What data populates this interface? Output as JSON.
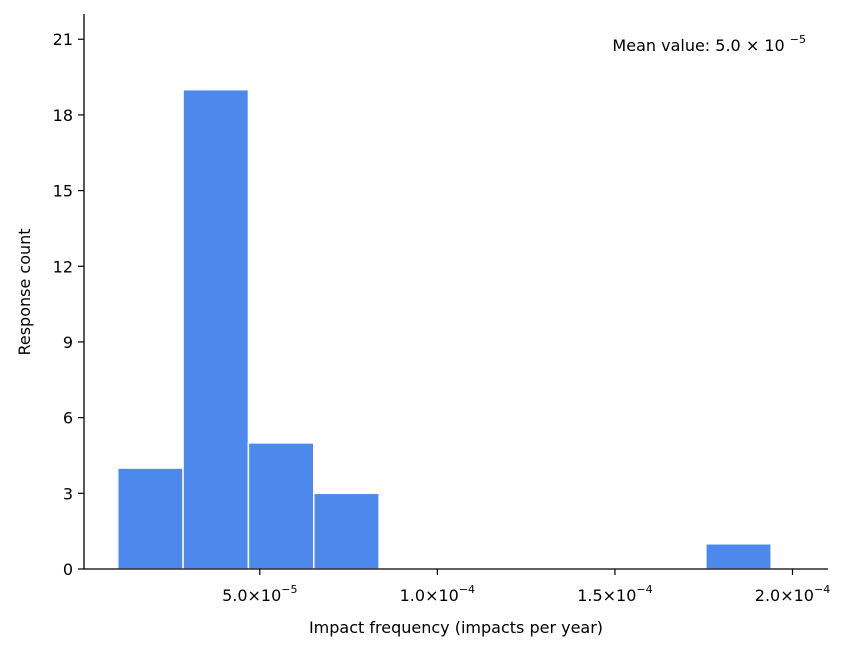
{
  "chart_data": {
    "type": "bar",
    "subtype": "histogram",
    "xlabel": "Impact frequency (impacts per year)",
    "ylabel": "Response count",
    "annotation": {
      "text_prefix": "Mean value: 5.0",
      "times": "×",
      "base": "10",
      "exponent": "−5",
      "placement": "top-right"
    },
    "bar_color": "#4d88ec",
    "xlim": [
      5e-07,
      0.00021
    ],
    "ylim": [
      0,
      22
    ],
    "x_ticks": [
      {
        "value": 5e-05,
        "mantissa": "5.0",
        "times": "×",
        "base": "10",
        "exponent": "−5"
      },
      {
        "value": 0.0001,
        "mantissa": "1.0",
        "times": "×",
        "base": "10",
        "exponent": "−4"
      },
      {
        "value": 0.00015,
        "mantissa": "1.5",
        "times": "×",
        "base": "10",
        "exponent": "−4"
      },
      {
        "value": 0.0002,
        "mantissa": "2.0",
        "times": "×",
        "base": "10",
        "exponent": "−4"
      }
    ],
    "y_ticks": [
      "0",
      "3",
      "6",
      "9",
      "12",
      "15",
      "18",
      "21"
    ],
    "bins": [
      {
        "x0": 1e-05,
        "x1": 2.84e-05,
        "count": 4
      },
      {
        "x0": 2.84e-05,
        "x1": 4.68e-05,
        "count": 19
      },
      {
        "x0": 4.68e-05,
        "x1": 6.52e-05,
        "count": 5
      },
      {
        "x0": 6.52e-05,
        "x1": 8.36e-05,
        "count": 3
      },
      {
        "x0": 8.36e-05,
        "x1": 0.000102,
        "count": 0
      },
      {
        "x0": 0.000102,
        "x1": 0.0001204,
        "count": 0
      },
      {
        "x0": 0.0001204,
        "x1": 0.0001388,
        "count": 0
      },
      {
        "x0": 0.0001388,
        "x1": 0.0001572,
        "count": 0
      },
      {
        "x0": 0.0001572,
        "x1": 0.0001756,
        "count": 0
      },
      {
        "x0": 0.0001756,
        "x1": 0.000194,
        "count": 1
      }
    ],
    "grid": false,
    "legend": "none"
  }
}
